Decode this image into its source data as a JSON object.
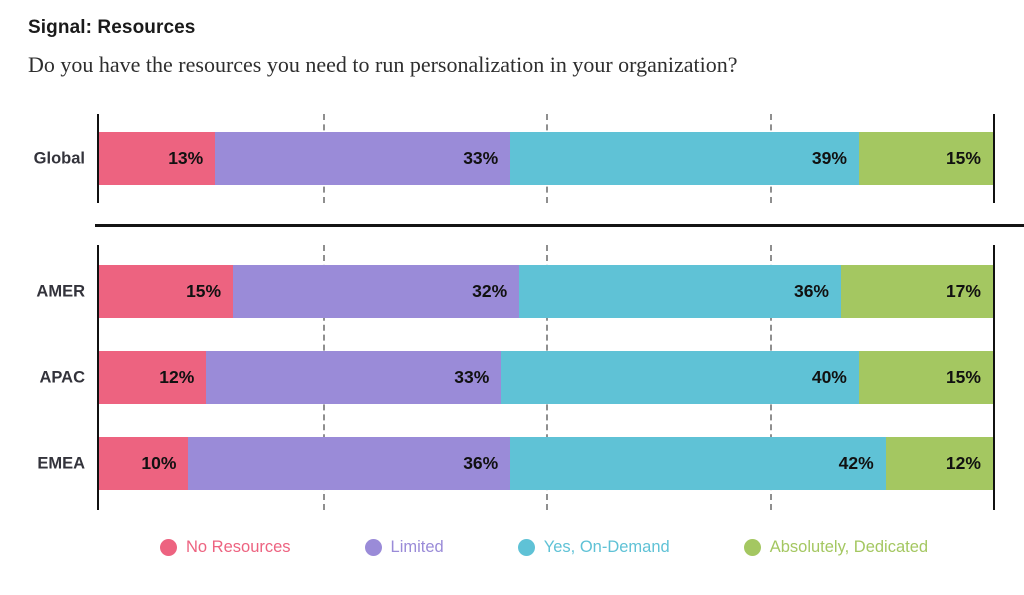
{
  "header": {
    "title": "Signal: Resources",
    "subtitle": "Do you have the resources you need to run personalization in your organization?"
  },
  "chart_data": {
    "type": "bar",
    "variant": "horizontal-stacked",
    "unit": "%",
    "xlim": [
      0,
      100
    ],
    "gridlines_percent": [
      25,
      50,
      75
    ],
    "grid_style": "dashed",
    "legend_position": "bottom",
    "value_labels": "inside-right-of-segment",
    "categories": [
      "Global",
      "AMER",
      "APAC",
      "EMEA"
    ],
    "row_groups": [
      [
        "Global"
      ],
      [
        "AMER",
        "APAC",
        "EMEA"
      ]
    ],
    "series": [
      {
        "name": "No Resources",
        "color": "#ED6380",
        "values": [
          13,
          15,
          12,
          10
        ]
      },
      {
        "name": "Limited",
        "color": "#9A8BD8",
        "values": [
          33,
          32,
          33,
          36
        ]
      },
      {
        "name": "Yes, On-Demand",
        "color": "#5FC2D6",
        "values": [
          39,
          36,
          40,
          42
        ]
      },
      {
        "name": "Absolutely, Dedicated",
        "color": "#A4C761",
        "values": [
          15,
          17,
          15,
          12
        ]
      }
    ],
    "colors": {
      "axis": "#111111",
      "gridline": "#8f8f8f",
      "value_label": "#111111",
      "row_label": "#33333b"
    }
  }
}
